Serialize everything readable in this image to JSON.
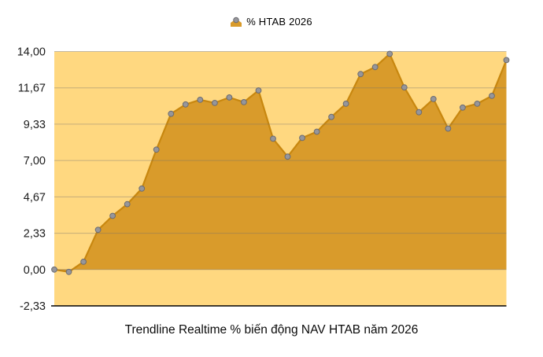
{
  "legend": {
    "label": "% HTAB 2026"
  },
  "title": "Trendline Realtime % biến động NAV HTAB năm 2026",
  "colors": {
    "page_background": "#FFFFFF",
    "plot_background": "#FFD880",
    "area_fill": "#D99B2B",
    "line_stroke": "#C8870F",
    "marker_fill": "#96969B",
    "marker_stroke": "#6B6B70",
    "gridline": "rgba(110,110,110,0.40)",
    "axis_line": "#000000",
    "label_color": "#1B1B1B"
  },
  "chart_data": {
    "type": "area",
    "title": "Trendline Realtime % biến động NAV HTAB năm 2026",
    "series": [
      {
        "name": "% HTAB 2026",
        "values": [
          0.0,
          -0.15,
          0.5,
          2.55,
          3.45,
          4.2,
          5.2,
          7.7,
          10.0,
          10.6,
          10.9,
          10.7,
          11.05,
          10.75,
          11.5,
          8.4,
          7.25,
          8.45,
          8.85,
          9.8,
          10.65,
          12.55,
          13.0,
          13.85,
          11.7,
          10.1,
          10.95,
          9.05,
          10.4,
          10.65,
          11.15,
          13.45
        ]
      }
    ],
    "x": [
      1,
      2,
      3,
      4,
      5,
      6,
      7,
      8,
      9,
      10,
      11,
      12,
      13,
      14,
      15,
      16,
      17,
      18,
      19,
      20,
      21,
      22,
      23,
      24,
      25,
      26,
      27,
      28,
      29,
      30,
      31,
      32
    ],
    "x_axis_labels_visible": false,
    "ylim": [
      -2.3333,
      14.0
    ],
    "y_ticks": [
      14.0,
      11.6667,
      9.3333,
      7.0,
      4.6667,
      2.3333,
      0.0,
      -2.3333
    ],
    "y_tick_labels": [
      "14,00",
      "11,67",
      "9,33",
      "7,00",
      "4,67",
      "2,33",
      "0,00",
      "-2,33"
    ],
    "baseline": 0,
    "grid": true,
    "legend_position": "top-center"
  }
}
